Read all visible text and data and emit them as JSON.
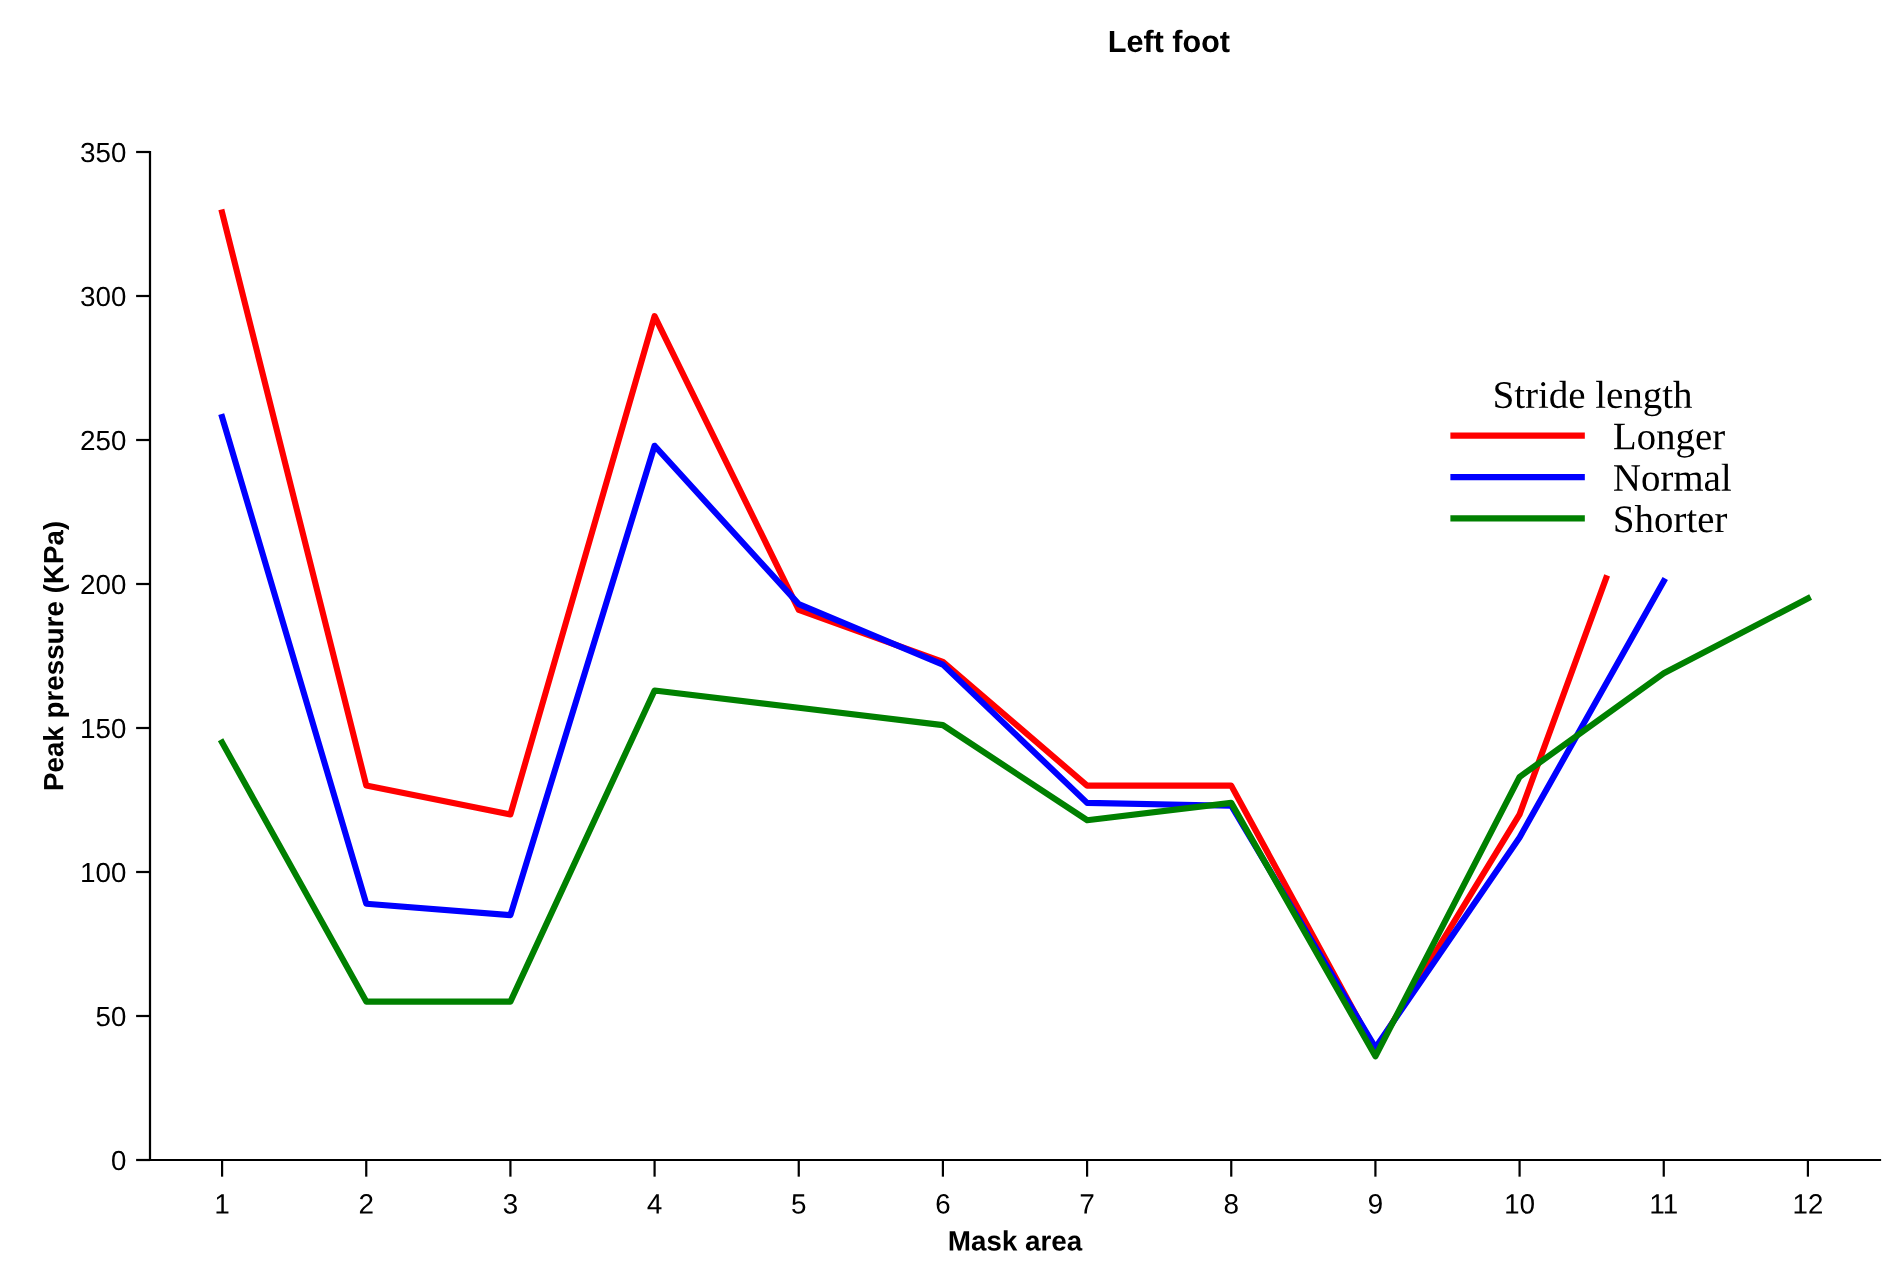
{
  "chart_data": {
    "type": "line",
    "title": "Left foot",
    "xlabel": "Mask area",
    "ylabel": "Peak pressure (KPa)",
    "legend_title": "Stride length",
    "legend": "top right",
    "grid": false,
    "marker": "none",
    "line_style": "solid",
    "xlim": [
      0.5,
      12.5
    ],
    "ylim": [
      0,
      350
    ],
    "yticks": [
      0,
      50,
      100,
      150,
      200,
      250,
      300,
      350
    ],
    "xticks": [
      1,
      2,
      3,
      4,
      5,
      6,
      7,
      8,
      9,
      10,
      11,
      12
    ],
    "series": [
      {
        "name": "Longer",
        "color": "#ff0000",
        "x": [
          1,
          2,
          3,
          4,
          5,
          6,
          7,
          8,
          9,
          10,
          10.6
        ],
        "values": [
          329,
          130,
          120,
          293,
          191,
          173,
          130,
          130,
          38,
          120,
          202
        ]
      },
      {
        "name": "Normal",
        "color": "#0000ff",
        "x": [
          1,
          2,
          3,
          4,
          5,
          6,
          7,
          8,
          9,
          10,
          11
        ],
        "values": [
          258,
          89,
          85,
          248,
          193,
          172,
          124,
          123,
          39,
          112,
          201
        ]
      },
      {
        "name": "Shorter",
        "color": "#008000",
        "x": [
          1,
          2,
          3,
          4,
          5,
          6,
          7,
          8,
          9,
          10,
          11,
          12
        ],
        "values": [
          145,
          55,
          55,
          163,
          157,
          151,
          118,
          124,
          36,
          133,
          169,
          195
        ]
      }
    ]
  }
}
